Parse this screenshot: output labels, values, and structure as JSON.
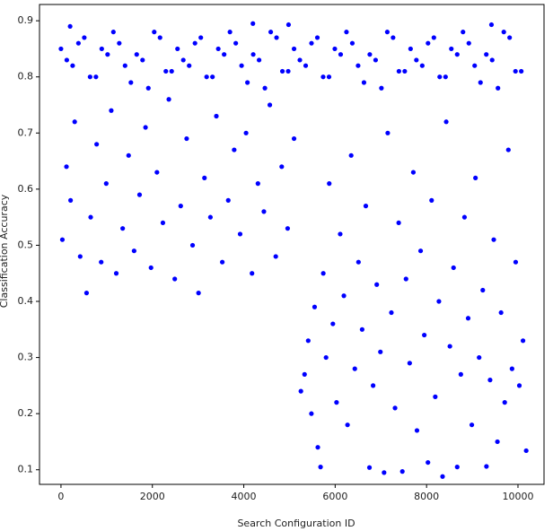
{
  "chart_data": {
    "type": "scatter",
    "x_label": "Search Configuration ID",
    "y_label": "Classification Accuracy",
    "color": "#0000ff",
    "xlim": [
      -470,
      10570
    ],
    "ylim": [
      0.074,
      0.929
    ],
    "xticks": [
      0,
      2000,
      4000,
      6000,
      8000,
      10000
    ],
    "yticks": [
      0.1,
      0.2,
      0.3,
      0.4,
      0.5,
      0.6,
      0.7,
      0.8,
      0.9
    ],
    "x": [
      0,
      255,
      510,
      765,
      1020,
      1275,
      1530,
      1785,
      2040,
      2295,
      2550,
      2805,
      3060,
      3315,
      3570,
      3825,
      4080,
      4335,
      4590,
      4845,
      5100,
      5355,
      5610,
      5865,
      6120,
      6375,
      6630,
      6885,
      7140,
      7395,
      7650,
      7905,
      8160,
      8415,
      8670,
      8925,
      9180,
      9435,
      9690,
      9945,
      127,
      382,
      637,
      892,
      1147,
      1402,
      1657,
      1912,
      2167,
      2422,
      2677,
      2932,
      3187,
      3442,
      3697,
      3952,
      4207,
      4462,
      4717,
      4972,
      5227,
      5482,
      5737,
      5992,
      6247,
      6502,
      6757,
      7012,
      7267,
      7522,
      7777,
      8032,
      8287,
      8542,
      8797,
      9052,
      9307,
      9562,
      9817,
      10072,
      4200,
      4980,
      9420,
      200,
      30,
      120,
      210,
      300,
      420,
      560,
      650,
      780,
      880,
      990,
      1100,
      1210,
      1350,
      1480,
      1600,
      1720,
      1850,
      1970,
      2100,
      2230,
      2360,
      2490,
      2620,
      2750,
      2880,
      3010,
      3140,
      3270,
      3400,
      3530,
      3660,
      3790,
      3920,
      4050,
      4180,
      4310,
      4440,
      4570,
      4700,
      4830,
      4960,
      5100,
      5250,
      5330,
      5410,
      5480,
      5550,
      5620,
      5680,
      5740,
      5800,
      5870,
      5950,
      6030,
      6110,
      6190,
      6270,
      6350,
      6430,
      6510,
      6590,
      6670,
      6750,
      6830,
      6910,
      6990,
      7070,
      7150,
      7230,
      7310,
      7390,
      7470,
      7550,
      7630,
      7710,
      7790,
      7870,
      7950,
      8030,
      8110,
      8190,
      8270,
      8350,
      8430,
      8510,
      8590,
      8670,
      8750,
      8830,
      8910,
      8990,
      9070,
      9150,
      9230,
      9310,
      9390,
      9470,
      9550,
      9630,
      9710,
      9790,
      9870,
      9950,
      10030,
      10110,
      10180
    ],
    "values": [
      0.85,
      0.82,
      0.87,
      0.8,
      0.84,
      0.86,
      0.79,
      0.83,
      0.88,
      0.81,
      0.85,
      0.82,
      0.87,
      0.8,
      0.84,
      0.86,
      0.79,
      0.83,
      0.88,
      0.81,
      0.85,
      0.82,
      0.87,
      0.8,
      0.84,
      0.86,
      0.79,
      0.83,
      0.88,
      0.81,
      0.85,
      0.82,
      0.87,
      0.8,
      0.84,
      0.86,
      0.79,
      0.83,
      0.88,
      0.81,
      0.83,
      0.86,
      0.8,
      0.85,
      0.88,
      0.82,
      0.84,
      0.78,
      0.87,
      0.81,
      0.83,
      0.86,
      0.8,
      0.85,
      0.88,
      0.82,
      0.84,
      0.78,
      0.87,
      0.81,
      0.83,
      0.86,
      0.8,
      0.85,
      0.88,
      0.82,
      0.84,
      0.78,
      0.87,
      0.81,
      0.83,
      0.86,
      0.8,
      0.85,
      0.88,
      0.82,
      0.84,
      0.78,
      0.87,
      0.81,
      0.895,
      0.893,
      0.893,
      0.89,
      0.51,
      0.64,
      0.58,
      0.72,
      0.48,
      0.415,
      0.55,
      0.68,
      0.47,
      0.61,
      0.74,
      0.45,
      0.53,
      0.66,
      0.49,
      0.59,
      0.71,
      0.46,
      0.63,
      0.54,
      0.76,
      0.44,
      0.57,
      0.69,
      0.5,
      0.415,
      0.62,
      0.55,
      0.73,
      0.47,
      0.58,
      0.67,
      0.52,
      0.7,
      0.45,
      0.61,
      0.56,
      0.75,
      0.48,
      0.64,
      0.53,
      0.69,
      0.24,
      0.27,
      0.33,
      0.2,
      0.39,
      0.14,
      0.105,
      0.45,
      0.3,
      0.61,
      0.36,
      0.22,
      0.52,
      0.41,
      0.18,
      0.66,
      0.28,
      0.47,
      0.35,
      0.57,
      0.104,
      0.25,
      0.43,
      0.31,
      0.095,
      0.7,
      0.38,
      0.21,
      0.54,
      0.097,
      0.44,
      0.29,
      0.63,
      0.17,
      0.49,
      0.34,
      0.113,
      0.58,
      0.23,
      0.4,
      0.088,
      0.72,
      0.32,
      0.46,
      0.105,
      0.27,
      0.55,
      0.37,
      0.18,
      0.62,
      0.3,
      0.42,
      0.106,
      0.26,
      0.51,
      0.15,
      0.38,
      0.22,
      0.67,
      0.28,
      0.47,
      0.25,
      0.33,
      0.134
    ]
  }
}
